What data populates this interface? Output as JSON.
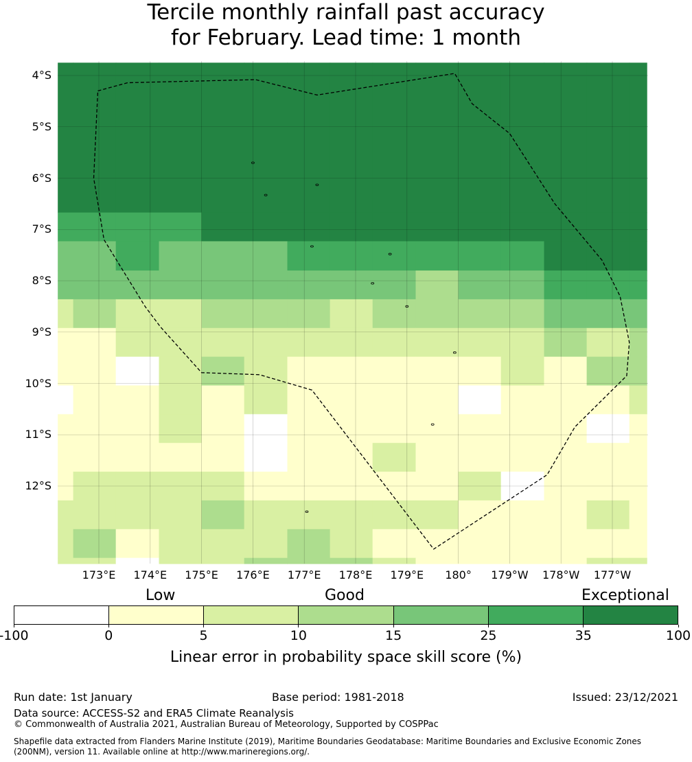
{
  "title": {
    "line1": "Tercile monthly rainfall past accuracy",
    "line2": "for February. Lead time: 1 month"
  },
  "map": {
    "latitude_labels": [
      "4°S",
      "5°S",
      "6°S",
      "7°S",
      "8°S",
      "9°S",
      "10°S",
      "11°S",
      "12°S"
    ],
    "longitude_labels": [
      "173°E",
      "174°E",
      "175°E",
      "176°E",
      "177°E",
      "178°E",
      "179°E",
      "180°",
      "179°W",
      "178°W",
      "177°W"
    ],
    "boundary_style": "dashed",
    "gridlines": true,
    "grid_columns_deg": [
      172.2,
      172.5,
      173.33,
      174.17,
      175.0,
      175.83,
      176.67,
      177.5,
      178.33,
      179.17,
      180.0,
      180.83,
      181.67,
      182.5,
      183.33,
      183.67
    ],
    "grid_rows_deg": [
      3.75,
      6.67,
      7.23,
      7.8,
      8.36,
      8.92,
      9.48,
      10.04,
      10.6,
      11.16,
      11.72,
      12.28,
      12.84,
      13.4,
      13.55
    ],
    "cell_class_grid": [
      [
        "6",
        "6",
        "6",
        "6",
        "6",
        "6",
        "6",
        "6",
        "6",
        "6",
        "6",
        "6",
        "6",
        "6",
        "6"
      ],
      [
        "5",
        "5",
        "5",
        "5",
        "6",
        "6",
        "6",
        "6",
        "6",
        "6",
        "6",
        "6",
        "6",
        "6",
        "6"
      ],
      [
        "4",
        "4",
        "5",
        "4",
        "4",
        "4",
        "5",
        "5",
        "5",
        "5",
        "5",
        "5",
        "6",
        "6",
        "6"
      ],
      [
        "4",
        "4",
        "4",
        "4",
        "4",
        "4",
        "4",
        "4",
        "4",
        "3",
        "4",
        "4",
        "5",
        "5",
        "5"
      ],
      [
        "2",
        "3",
        "2",
        "2",
        "3",
        "3",
        "3",
        "2",
        "3",
        "3",
        "3",
        "3",
        "4",
        "4",
        "4"
      ],
      [
        "1",
        "1",
        "2",
        "2",
        "2",
        "2",
        "2",
        "2",
        "2",
        "2",
        "2",
        "2",
        "3",
        "2",
        "3"
      ],
      [
        "1",
        "1",
        "0",
        "2",
        "3",
        "2",
        "1",
        "1",
        "1",
        "1",
        "1",
        "2",
        "1",
        "3",
        "3"
      ],
      [
        "0",
        "1",
        "1",
        "2",
        "1",
        "2",
        "1",
        "1",
        "1",
        "1",
        "0",
        "1",
        "1",
        "1",
        "2"
      ],
      [
        "1",
        "1",
        "1",
        "2",
        "1",
        "0",
        "1",
        "1",
        "1",
        "1",
        "1",
        "1",
        "1",
        "0",
        "1"
      ],
      [
        "1",
        "1",
        "1",
        "1",
        "1",
        "0",
        "1",
        "1",
        "2",
        "1",
        "1",
        "1",
        "1",
        "1",
        "1"
      ],
      [
        "1",
        "2",
        "2",
        "2",
        "2",
        "1",
        "1",
        "1",
        "1",
        "1",
        "2",
        "0",
        "1",
        "1",
        "1"
      ],
      [
        "2",
        "2",
        "2",
        "2",
        "3",
        "2",
        "2",
        "2",
        "2",
        "2",
        "1",
        "1",
        "1",
        "2",
        "1"
      ],
      [
        "2",
        "3",
        "1",
        "2",
        "2",
        "2",
        "3",
        "2",
        "1",
        "1",
        "1",
        "1",
        "1",
        "1",
        "1"
      ],
      [
        "2",
        "2",
        "0",
        "2",
        "2",
        "3",
        "3",
        "3",
        "2",
        "1",
        "1",
        "1",
        "1",
        "2",
        "2"
      ]
    ],
    "boundary_lonlat": [
      [
        172.98,
        4.3
      ],
      [
        173.56,
        4.14
      ],
      [
        176.05,
        4.08
      ],
      [
        177.25,
        4.38
      ],
      [
        179.93,
        3.96
      ],
      [
        180.27,
        4.55
      ],
      [
        181.0,
        5.13
      ],
      [
        181.88,
        6.5
      ],
      [
        182.8,
        7.6
      ],
      [
        183.15,
        8.3
      ],
      [
        183.33,
        9.2
      ],
      [
        183.28,
        9.85
      ],
      [
        182.27,
        10.85
      ],
      [
        181.73,
        11.78
      ],
      [
        179.52,
        13.23
      ],
      [
        177.15,
        10.13
      ],
      [
        176.13,
        9.83
      ],
      [
        175.0,
        9.79
      ],
      [
        174.2,
        8.9
      ],
      [
        173.9,
        8.5
      ],
      [
        173.1,
        7.2
      ],
      [
        172.9,
        6.0
      ],
      [
        172.98,
        4.3
      ]
    ],
    "islets_lonlat": [
      [
        176.0,
        5.7
      ],
      [
        177.25,
        6.13
      ],
      [
        176.25,
        6.33
      ],
      [
        177.15,
        7.33
      ],
      [
        178.67,
        7.48
      ],
      [
        178.33,
        8.05
      ],
      [
        179.0,
        8.5
      ],
      [
        179.93,
        9.4
      ],
      [
        179.5,
        10.8
      ],
      [
        177.05,
        12.5
      ]
    ]
  },
  "colorbar": {
    "ticks": [
      "-100",
      "0",
      "5",
      "10",
      "15",
      "25",
      "35",
      "100"
    ],
    "colors": [
      "#ffffff",
      "#ffffcc",
      "#d9f0a3",
      "#addd8e",
      "#78c679",
      "#41ab5d",
      "#238443"
    ],
    "categories": {
      "low": "Low",
      "good": "Good",
      "exceptional": "Exceptional"
    },
    "label": "Linear error in probability space skill score (%)"
  },
  "footer": {
    "run_date": "Run date: 1st January",
    "base_period": "Base period: 1981-2018",
    "issued": "Issued: 23/12/2021",
    "data_source": "Data source: ACCESS-S2 and ERA5 Climate Reanalysis",
    "copyright": "© Commonwealth of Australia 2021, Australian Bureau of Meteorology, Supported by COSPPac",
    "shapefile": "Shapefile data extracted from Flanders Marine Institute (2019), Maritime Boundaries Geodatabase: Maritime Boundaries and Exclusive Economic Zones (200NM), version 11. Available online at http://www.marineregions.org/."
  }
}
